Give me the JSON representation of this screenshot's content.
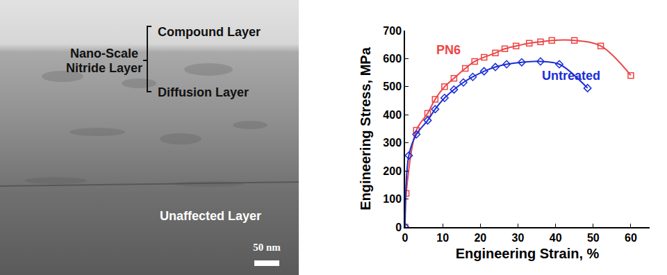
{
  "micrograph": {
    "labels": {
      "compound_layer": "Compound Layer",
      "nitride_layer": [
        "Nano-Scale",
        "Nitride Layer"
      ],
      "diffusion_layer": "Diffusion Layer",
      "unaffected_layer": "Unaffected Layer"
    },
    "scale_bar": "50 nm"
  },
  "chart_data": {
    "type": "line",
    "x_label": "Engineering Strain, %",
    "y_label": "Engineering Stress, MPa",
    "xlim": [
      0,
      65
    ],
    "ylim": [
      0,
      700
    ],
    "xticks": [
      0,
      10,
      20,
      30,
      40,
      50,
      60
    ],
    "yticks": [
      0,
      100,
      200,
      300,
      400,
      500,
      600,
      700
    ],
    "grid": false,
    "series": [
      {
        "name": "PN6",
        "color": "#ee4444",
        "marker": "square-open",
        "line_style": "solid",
        "x": [
          0,
          0.3,
          3,
          6,
          8,
          10.5,
          13,
          16,
          18.5,
          21,
          24,
          26.5,
          29.5,
          33,
          36,
          39,
          45,
          52,
          60
        ],
        "values": [
          0,
          120,
          345,
          405,
          455,
          500,
          530,
          565,
          590,
          605,
          620,
          635,
          645,
          655,
          660,
          665,
          665,
          645,
          540
        ]
      },
      {
        "name": "Untreated",
        "color": "#1a2ed6",
        "marker": "diamond-open",
        "line_style": "solid",
        "x": [
          0,
          1,
          3,
          6,
          8,
          10.5,
          13,
          15.5,
          18,
          21,
          24,
          27,
          31,
          36,
          41,
          48.5
        ],
        "values": [
          0,
          255,
          330,
          380,
          420,
          460,
          490,
          515,
          535,
          555,
          570,
          580,
          587,
          590,
          580,
          495
        ]
      }
    ]
  }
}
